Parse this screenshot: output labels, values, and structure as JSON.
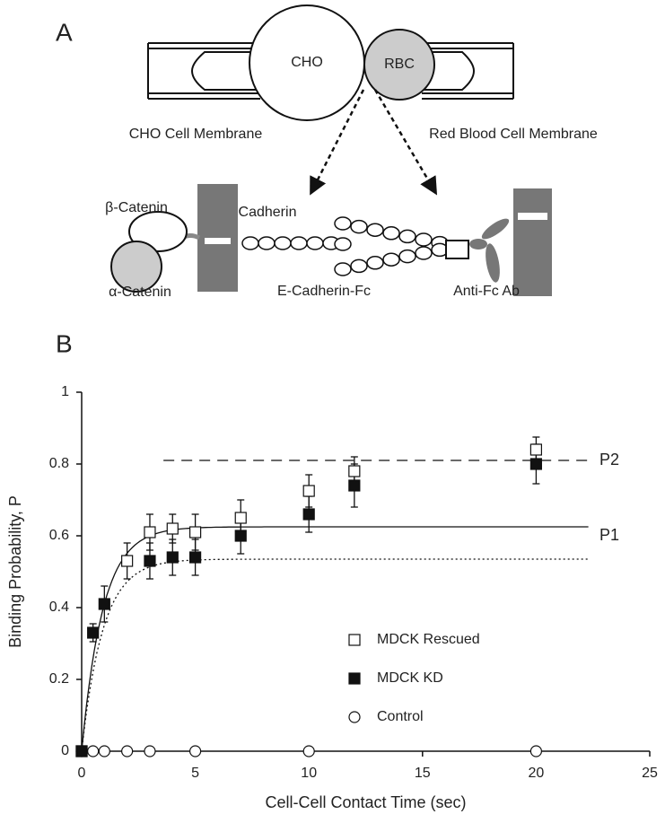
{
  "diagram": {
    "panel_a": "A",
    "cho": "CHO",
    "rbc": "RBC",
    "cho_membrane": "CHO Cell Membrane",
    "rbc_membrane": "Red Blood Cell Membrane",
    "beta_catenin": "β-Catenin",
    "alpha_catenin": "α-Catenin",
    "cadherin": "Cadherin",
    "ecadherin_fc": "E-Cadherin-Fc",
    "anti_fc": "Anti-Fc Ab"
  },
  "panel_b": "B",
  "chart_data": {
    "type": "scatter",
    "xlabel": "Cell-Cell Contact Time (sec)",
    "ylabel": "Binding Probability, P",
    "xlim": [
      0,
      25
    ],
    "ylim": [
      0,
      1
    ],
    "xticks": [
      0,
      5,
      10,
      15,
      20,
      25
    ],
    "yticks": [
      0,
      0.2,
      0.4,
      0.6,
      0.8,
      1
    ],
    "series": [
      {
        "name": "MDCK Rescued",
        "marker": "open-square",
        "color": "#000000",
        "x": [
          0,
          2,
          3,
          4,
          5,
          7,
          10,
          12,
          20
        ],
        "values": [
          0,
          0.53,
          0.61,
          0.62,
          0.61,
          0.65,
          0.725,
          0.78,
          0.84
        ],
        "errors": [
          0,
          0.05,
          0.05,
          0.04,
          0.05,
          0.05,
          0.045,
          0.04,
          0.035
        ]
      },
      {
        "name": "MDCK KD",
        "marker": "filled-square",
        "color": "#000000",
        "x": [
          0,
          0.5,
          1,
          3,
          4,
          5,
          7,
          10,
          12,
          20
        ],
        "values": [
          0,
          0.33,
          0.41,
          0.53,
          0.54,
          0.54,
          0.6,
          0.66,
          0.74,
          0.8
        ],
        "errors": [
          0,
          0.025,
          0.05,
          0.05,
          0.05,
          0.05,
          0.05,
          0.05,
          0.06,
          0.055
        ]
      },
      {
        "name": "Control",
        "marker": "open-circle",
        "color": "#000000",
        "x": [
          0,
          0.5,
          1,
          2,
          3,
          5,
          10,
          20
        ],
        "values": [
          0,
          0,
          0,
          0,
          0,
          0,
          0,
          0
        ]
      }
    ],
    "fits": [
      {
        "style": "solid",
        "plateau": 0.625,
        "rate": 1.07,
        "xend": 22.3
      },
      {
        "style": "dotted",
        "plateau": 0.535,
        "rate": 1.07,
        "xend": 22.3
      }
    ],
    "reference_line": {
      "style": "dashed",
      "value": 0.81,
      "xstart": 3.6,
      "xend": 22.3
    },
    "annotations": [
      "P2",
      "P1"
    ]
  }
}
